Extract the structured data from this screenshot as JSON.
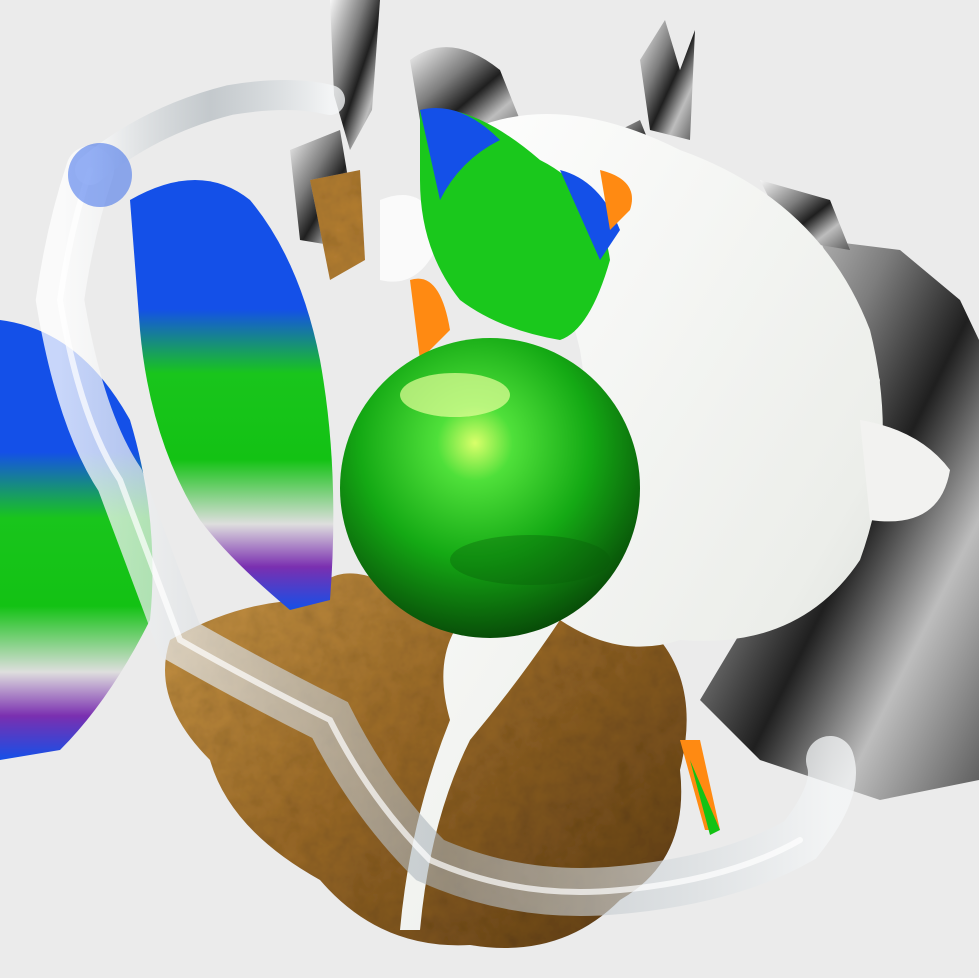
{
  "background": "#ebebeb",
  "palette": {
    "gold": "#a9742c",
    "gold_light": "#d7a24a",
    "gold_dark": "#5b3a12",
    "white_blob": "#f3f3f1",
    "green": "#13c214",
    "green_dark": "#0a5c0a",
    "blue": "#1450e8",
    "purple": "#7a2fb0",
    "orange": "#ff8a12",
    "chrome_light": "#f4f4f4",
    "chrome_mid": "#9a9a9a",
    "chrome_dark": "#2a2a2a",
    "glass": "#dfe6ea"
  },
  "objects": [
    "gold-rock-icon",
    "white-liquid-blob-icon",
    "green-chrome-sphere-icon",
    "blue-green-paint-sheets-icon",
    "chrome-spikes-icon",
    "glass-tube-icon"
  ]
}
